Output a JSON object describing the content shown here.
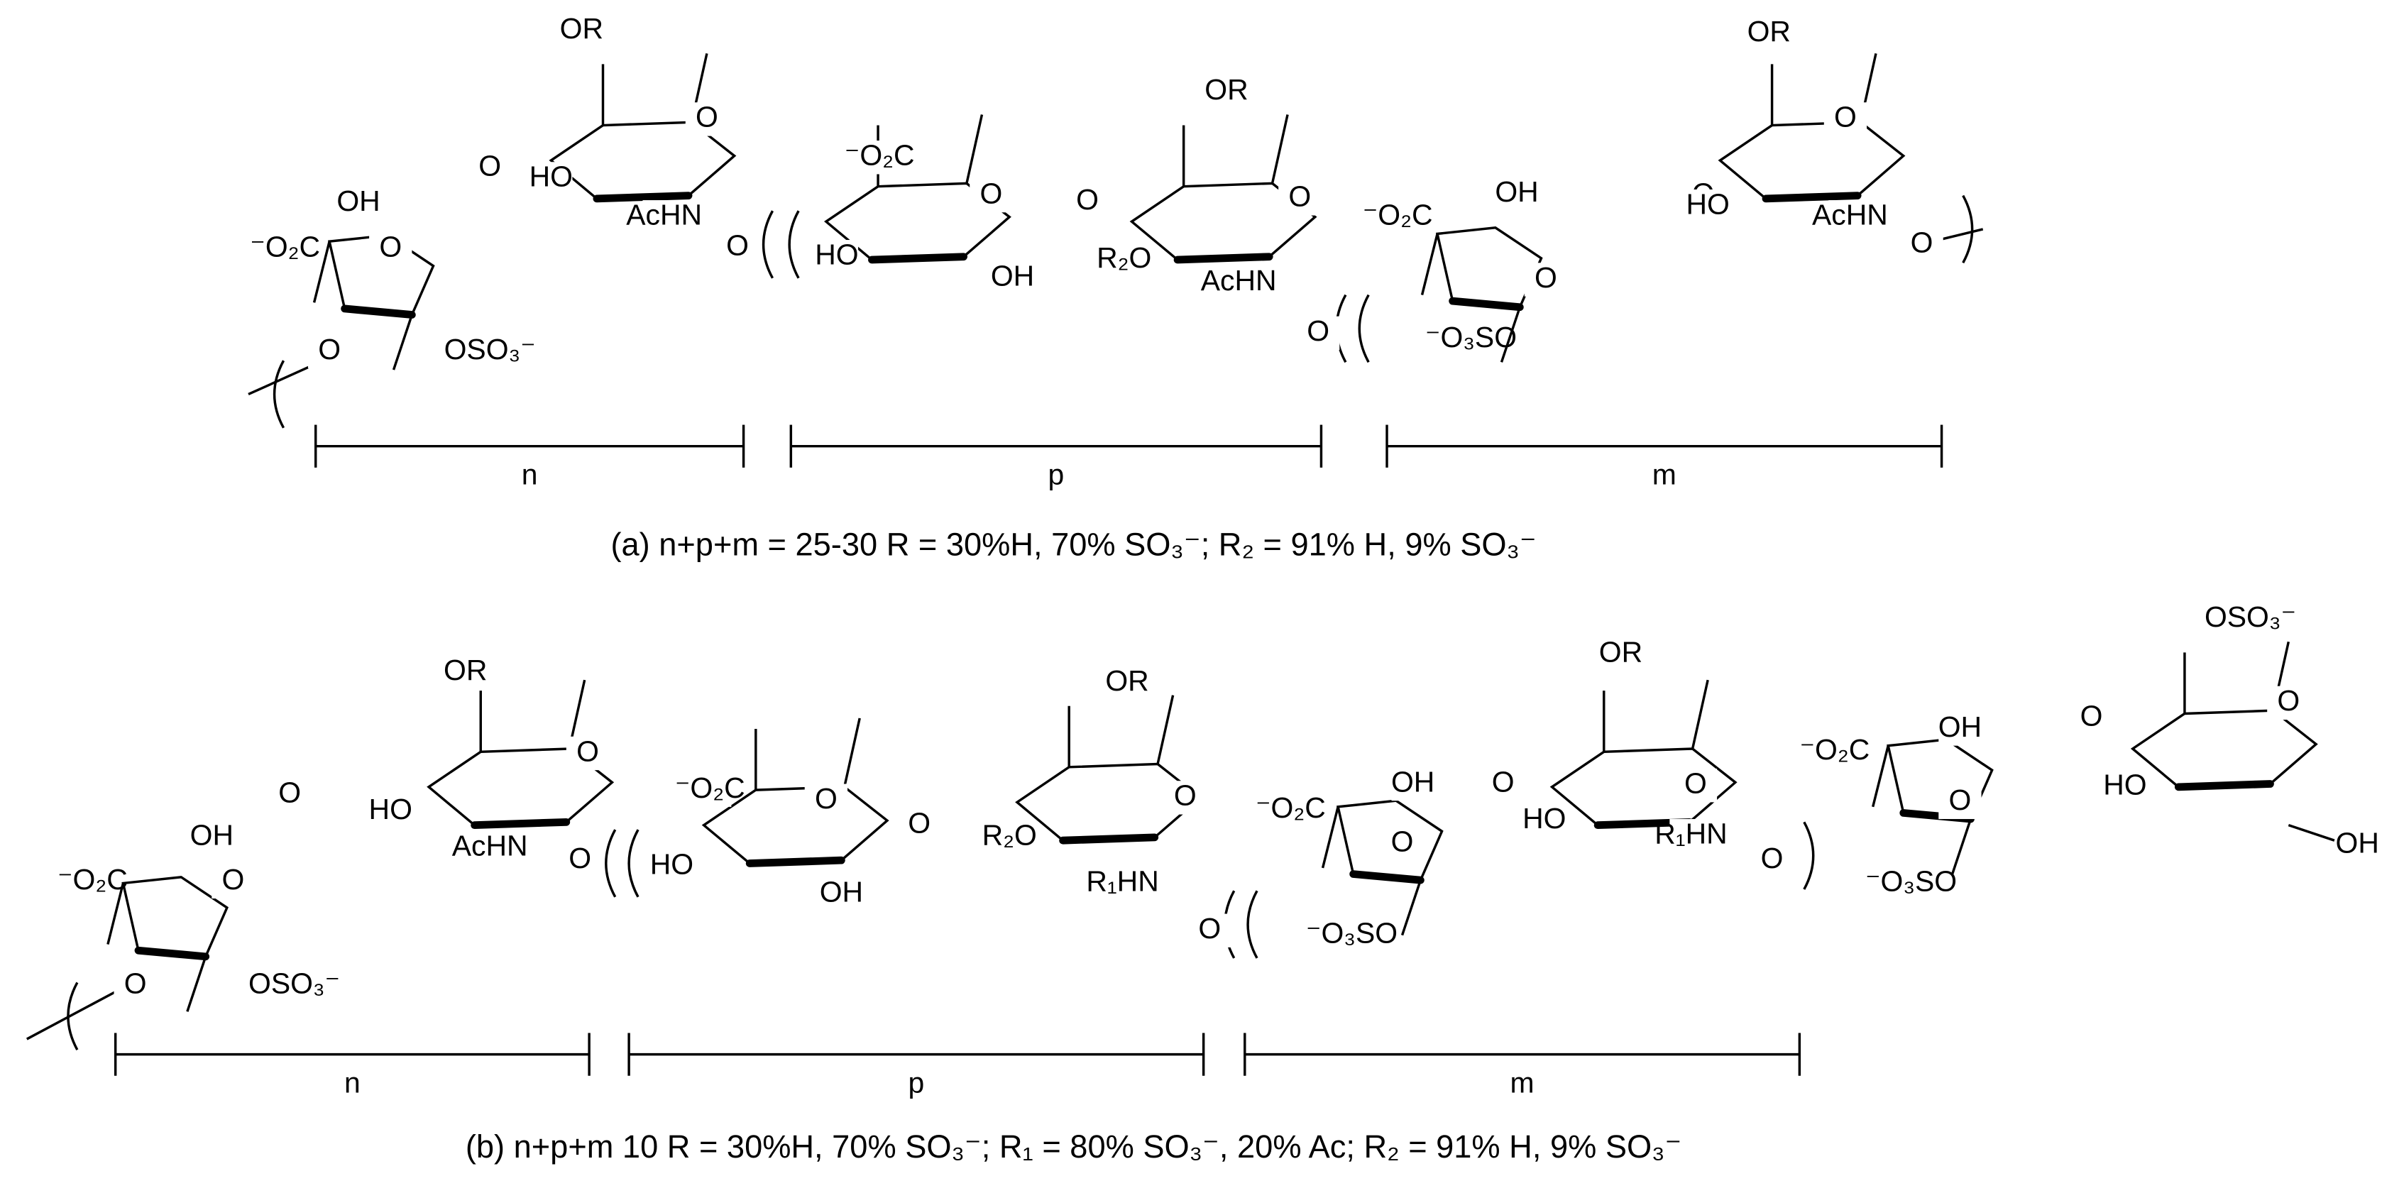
{
  "structure_a": {
    "labels": [
      "OR",
      "O",
      "O",
      "HO",
      "AcHN",
      "O",
      "OH",
      "⁻O₂C",
      "O",
      "O",
      "OSO₃⁻",
      "⁻O₂C",
      "O",
      "O",
      "OR",
      "O",
      "HO",
      "OH",
      "R₂O",
      "AcHN",
      "O",
      "⁻O₂C",
      "OH",
      "O",
      "O",
      "OR",
      "O",
      "HO",
      "AcHN",
      "O",
      "⁻O₃SO"
    ],
    "brackets": [
      "n",
      "p",
      "m"
    ],
    "caption": "(a) n+p+m = 25-30 R = 30%H, 70% SO₃⁻; R₂ = 91% H, 9% SO₃⁻"
  },
  "structure_b": {
    "labels": [
      "OR",
      "O",
      "O",
      "HO",
      "AcHN",
      "O",
      "OH",
      "⁻O₂C",
      "O",
      "O",
      "OSO₃⁻",
      "⁻O₂C",
      "O",
      "O",
      "OR",
      "O",
      "HO",
      "OH",
      "R₂O",
      "R₁HN",
      "O",
      "⁻O₂C",
      "OH",
      "O",
      "O",
      "⁻O₃SO",
      "OR",
      "O",
      "HO",
      "R₁HN",
      "O",
      "⁻O₂C",
      "OH",
      "O",
      "O",
      "⁻O₃SO",
      "OSO₃⁻",
      "O",
      "HO",
      "OH"
    ],
    "brackets": [
      "n",
      "p",
      "m"
    ],
    "caption": "(b) n+p+m 10 R = 30%H, 70% SO₃⁻; R₁ = 80% SO₃⁻, 20% Ac; R₂ = 91% H, 9% SO₃⁻"
  }
}
